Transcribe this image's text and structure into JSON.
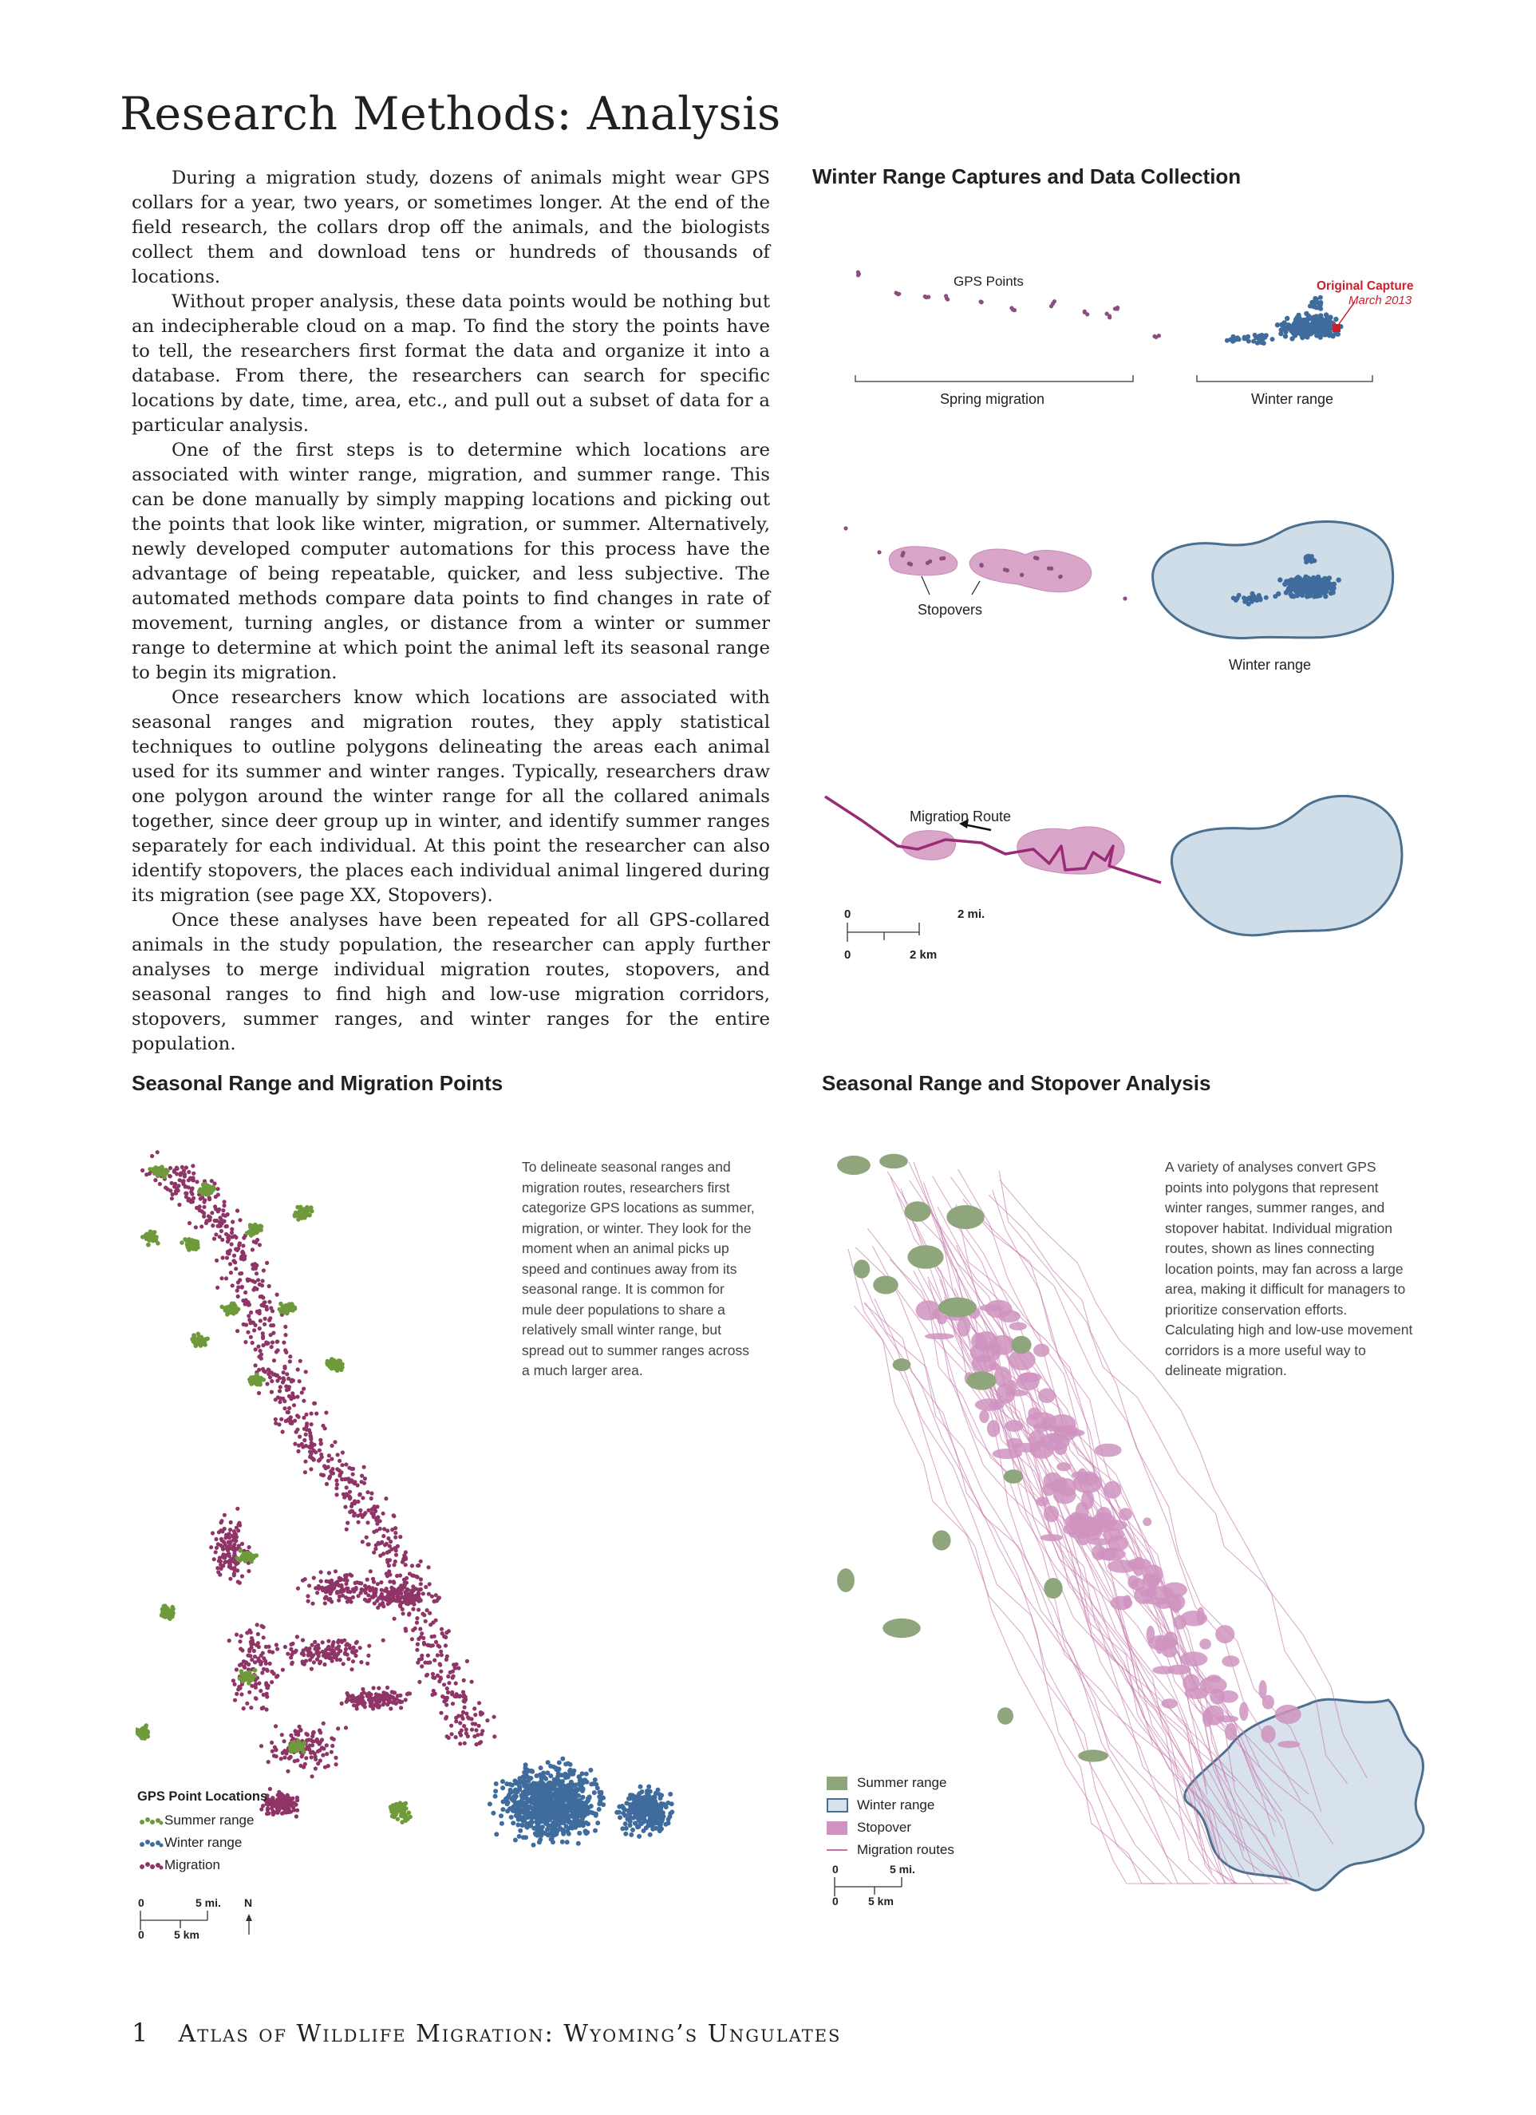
{
  "page": {
    "title": "Research Methods: Analysis",
    "paragraphs": [
      "During a migration study, dozens of animals might wear GPS collars for a year, two years, or sometimes longer. At the end of the field research, the collars drop off the animals, and the biologists collect them and download tens or hundreds of thousands of locations.",
      "Without proper analysis, these data points would be nothing but an indecipherable cloud on a map. To find the story the points have to tell, the researchers first format the data and organize it into a database. From there, the researchers can search for specific locations by date, time, area, etc., and pull out a subset of data for a particular analysis.",
      "One of the first steps is to determine which locations are associated with winter range, migration, and summer range. This can be done manually by simply mapping locations and picking out the points that look like winter, migration, or summer. Alternatively, newly developed computer automations for this process have the advantage of being repeatable, quicker, and less subjective. The automated methods compare data points to find changes in rate of movement, turning angles, or distance from a winter or summer range to determine at which point the animal left its seasonal range to begin its migration.",
      "Once researchers know which locations are associated with seasonal ranges and migration routes, they apply statistical techniques to outline polygons delineating the areas each animal used for its summer and winter ranges. Typically, researchers draw one polygon around the winter range for all the collared animals together, since deer group up in winter, and identify summer ranges separately for each individual. At this point the researcher can also identify stopovers, the places each individual animal lingered during its migration (see page XX, Stopovers).",
      "Once these analyses have been repeated for all GPS-collared animals in the study population, the researcher can apply further analyses to merge individual migration routes, stopovers, and seasonal ranges to find high and low-use migration corridors, stopovers, summer ranges, and winter ranges for the entire population."
    ],
    "footer": {
      "page_number": "1",
      "book_title": "Atlas of Wildlife Migration: Wyoming’s Ungulates"
    }
  },
  "winter_figure": {
    "title": "Winter Range Captures and Data Collection",
    "gps_points_label": "GPS Points",
    "original_capture_label": "Original Capture",
    "original_capture_date": "March 2013",
    "spring_migration_label": "Spring migration",
    "winter_range_label": "Winter range",
    "stopovers_label": "Stopovers",
    "winter_range_label2": "Winter range",
    "migration_route_label": "Migration Route",
    "scale": {
      "zero1": "0",
      "mi": "2 mi.",
      "zero2": "0",
      "km": "2 km"
    }
  },
  "points_map": {
    "title": "Seasonal Range and Migration Points",
    "note": "To delineate seasonal ranges and migration routes, researchers first categorize GPS locations as summer, migration, or winter. They look for the moment when an animal picks up speed and continues away from its seasonal range. It is common for mule deer populations to share a relatively small winter range, but spread out to summer ranges across a much larger area.",
    "legend_title": "GPS Point Locations",
    "legend": [
      "Summer range",
      "Winter range",
      "Migration"
    ],
    "scale": {
      "zero1": "0",
      "mi": "5 mi.",
      "zero2": "0",
      "km": "5 km",
      "north": "N"
    }
  },
  "stopover_map": {
    "title": "Seasonal Range and Stopover Analysis",
    "note": "A variety of analyses convert GPS points into polygons that represent winter ranges, summer ranges, and stopover habitat. Individual migration routes, shown as lines connecting location points, may fan across a large area, making it difficult for managers to prioritize conservation efforts. Calculating high and low-use movement corridors is a more useful way to delineate migration.",
    "legend": [
      "Summer range",
      "Winter range",
      "Stopover",
      "Migration routes"
    ],
    "scale": {
      "zero1": "0",
      "mi": "5 mi.",
      "zero2": "0",
      "km": "5 km"
    }
  },
  "colors": {
    "summer": "#6e9a3c",
    "winter": "#3f6c9c",
    "migration": "#8f3466",
    "winter_poly": "#cfdde9",
    "winter_poly_edge": "#4b6f8e",
    "stopover": "#cf93bf",
    "route": "#c473a8",
    "capture": "#c8202d",
    "route_line": "#9a2a75",
    "point_small": "#8a4f80"
  }
}
